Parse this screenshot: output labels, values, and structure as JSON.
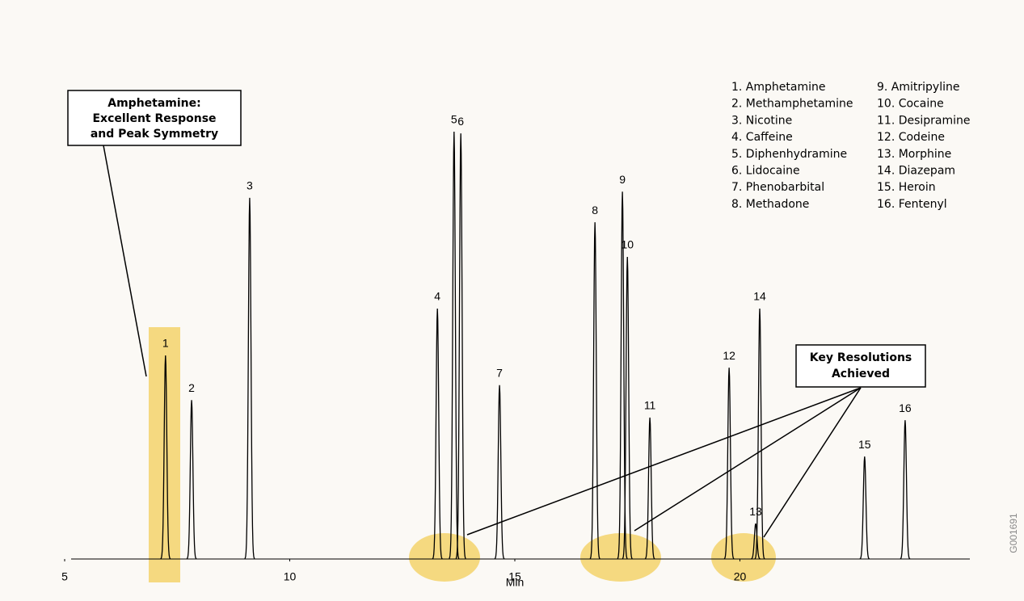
{
  "chart_data": {
    "type": "chromatogram",
    "xlabel": "Min",
    "xlim": [
      5,
      25
    ],
    "xticks": [
      5,
      10,
      15,
      20
    ],
    "ylim": [
      0,
      100
    ],
    "color": "#000000",
    "labels": [
      "1",
      "2",
      "3",
      "4",
      "5",
      "6",
      "7",
      "8",
      "9",
      "10",
      "11",
      "12",
      "13",
      "14",
      "15",
      "16"
    ],
    "x": [
      7.24,
      7.82,
      9.11,
      13.28,
      13.65,
      13.8,
      14.66,
      16.78,
      17.39,
      17.5,
      18.0,
      19.76,
      20.35,
      20.44,
      22.77,
      23.67
    ],
    "values": [
      46.5,
      36.3,
      82.5,
      57.2,
      97.6,
      97.2,
      39.7,
      76.9,
      83.9,
      69.0,
      32.3,
      43.7,
      8.1,
      57.2,
      23.4,
      31.7
    ],
    "legend": [
      "1. Amphetamine",
      "2. Methamphetamine",
      "3. Nicotine",
      "4. Caffeine",
      "5. Diphenhydramine",
      "6. Lidocaine",
      "7. Phenobarbital",
      "8. Methadone",
      "9. Amitripyline",
      "10. Cocaine",
      "11. Desipramine",
      "12. Codeine",
      "13. Morphine",
      "14. Diazepam",
      "15. Heroin",
      "16. Fentenyl"
    ],
    "annotations": [
      [
        "Amphetamine:",
        "Excellent Response",
        "and Peak Symmetry"
      ],
      [
        "Key Resolutions",
        "Achieved"
      ]
    ],
    "code": "G001691"
  }
}
